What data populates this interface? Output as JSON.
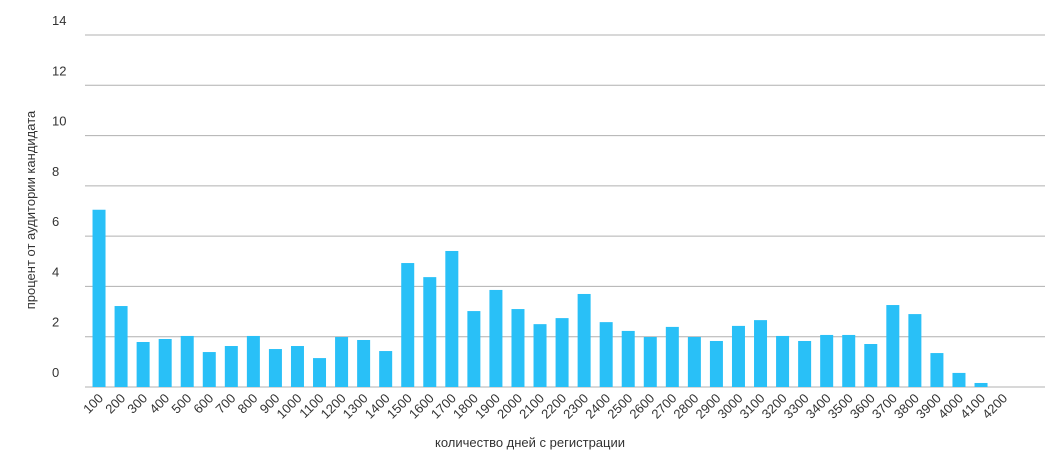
{
  "chart_data": {
    "type": "bar",
    "x_label": "количество дней с регистрации",
    "y_label": "процент от аудитории кандидата",
    "categories": [
      "100",
      "200",
      "300",
      "400",
      "500",
      "600",
      "700",
      "800",
      "900",
      "1000",
      "1100",
      "1200",
      "1300",
      "1400",
      "1500",
      "1600",
      "1700",
      "1800",
      "1900",
      "2000",
      "2100",
      "2200",
      "2300",
      "2400",
      "2500",
      "2600",
      "2700",
      "2800",
      "2900",
      "3000",
      "3100",
      "3200",
      "3300",
      "3400",
      "3500",
      "3600",
      "3700",
      "3800",
      "3900",
      "4000",
      "4100",
      "4200"
    ],
    "values": [
      7.05,
      3.22,
      1.79,
      1.91,
      2.03,
      1.39,
      1.63,
      2.03,
      1.51,
      1.63,
      1.15,
      1.99,
      1.87,
      1.43,
      4.93,
      4.37,
      5.41,
      3.02,
      3.86,
      3.1,
      2.5,
      2.74,
      3.7,
      2.58,
      2.23,
      1.99,
      2.39,
      1.99,
      1.83,
      2.43,
      2.66,
      2.03,
      1.83,
      2.07,
      2.07,
      1.71,
      3.26,
      2.9,
      1.35,
      0.56,
      0.16,
      0
    ],
    "color": "#29c0f7",
    "ylim": [
      0,
      14
    ],
    "yticks": [
      0,
      2,
      4,
      6,
      8,
      10,
      12,
      14
    ],
    "grid": true
  }
}
